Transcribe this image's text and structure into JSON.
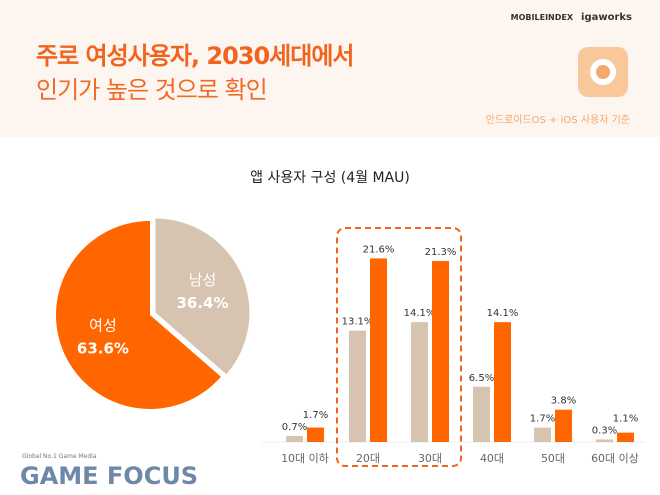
{
  "header": {
    "title_line1": "주로 여성사용자, 2030세대에서",
    "title_line2": "인기가 높은 것으로 확인",
    "logo1": "MOBILEINDEX",
    "logo2": "igaworks",
    "note": "안드로이드OS + iOS 사용자 기준"
  },
  "watermark": {
    "line1": "Global No.1 Game Media",
    "line2": "GAME FOCUS"
  },
  "colors": {
    "female": "#ff6600",
    "male": "#d6c3b0"
  },
  "chart_data": [
    {
      "type": "pie",
      "title": "앱 사용자 구성 (4월 MAU)",
      "slices": [
        {
          "label": "남성",
          "value": 36.4,
          "text": "36.4%"
        },
        {
          "label": "여성",
          "value": 63.6,
          "text": "63.6%"
        }
      ]
    },
    {
      "type": "bar",
      "categories": [
        "10대 이하",
        "20대",
        "30대",
        "40대",
        "50대",
        "60대 이상"
      ],
      "series": [
        {
          "name": "남성",
          "values": [
            0.7,
            13.1,
            14.1,
            6.5,
            1.7,
            0.3
          ]
        },
        {
          "name": "여성",
          "values": [
            1.7,
            21.6,
            21.3,
            14.1,
            3.8,
            1.1
          ]
        }
      ],
      "labels": [
        [
          "0.7%",
          "13.1%",
          "14.1%",
          "6.5%",
          "1.7%",
          "0.3%"
        ],
        [
          "1.7%",
          "21.6%",
          "21.3%",
          "14.1%",
          "3.8%",
          "1.1%"
        ]
      ],
      "highlight": [
        "20대",
        "30대"
      ]
    }
  ]
}
